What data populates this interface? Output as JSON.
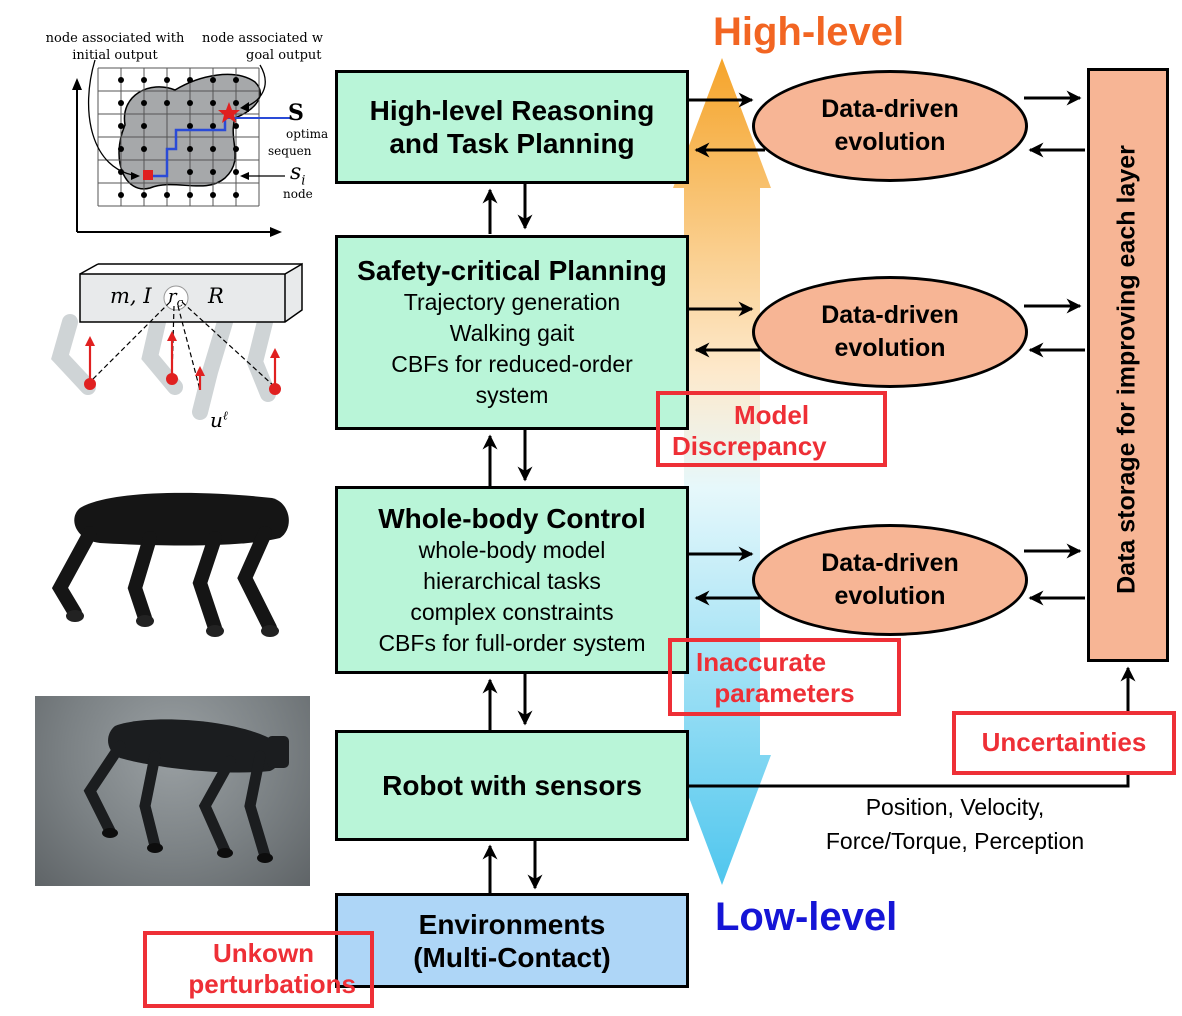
{
  "levels": {
    "high": "High-level",
    "low": "Low-level"
  },
  "blocks": {
    "reasoning": {
      "title_1": "High-level Reasoning",
      "title_2": "and Task Planning"
    },
    "safety": {
      "title": "Safety-critical Planning",
      "lines": [
        "Trajectory generation",
        "Walking gait",
        "CBFs for reduced-order",
        "system"
      ]
    },
    "wbc": {
      "title": "Whole-body Control",
      "lines": [
        "whole-body model",
        "hierarchical tasks",
        "complex constraints",
        "CBFs for full-order system"
      ]
    },
    "robot": {
      "title": "Robot with sensors"
    },
    "env": {
      "title_1": "Environments",
      "title_2": "(Multi-Contact)"
    }
  },
  "evolution": {
    "line_1": "Data-driven",
    "line_2": "evolution"
  },
  "storage": {
    "label": "Data storage for improving each layer"
  },
  "issues": {
    "model": {
      "line_1": "Model",
      "line_2": "Discrepancy"
    },
    "params": {
      "line_1": "Inaccurate",
      "line_2": "parameters"
    },
    "uncertainties": "Uncertainties",
    "perturbations": {
      "line_1": "Unkown",
      "line_2": "perturbations"
    }
  },
  "feedback": {
    "line_1": "Position, Velocity,",
    "line_2": "Force/Torque, Perception"
  },
  "inset_plan": {
    "initial": [
      "node associated with",
      "initial output"
    ],
    "goal": [
      "node associated w",
      "goal output"
    ],
    "s_label": "S",
    "seq": [
      "optima",
      "sequen"
    ],
    "si": "s",
    "si_sub": "i",
    "node": "node"
  },
  "inset_model": {
    "mass": "m, I",
    "rc": "r",
    "rc_sub": "c",
    "R": "R",
    "u": "u",
    "u_sup": "ℓ"
  },
  "colors": {
    "high": "#f26522",
    "low": "#1515d6",
    "issue": "#ee2f36",
    "block": "#b9f5d8",
    "env": "#aed6f7",
    "evolution": "#f7b595"
  }
}
